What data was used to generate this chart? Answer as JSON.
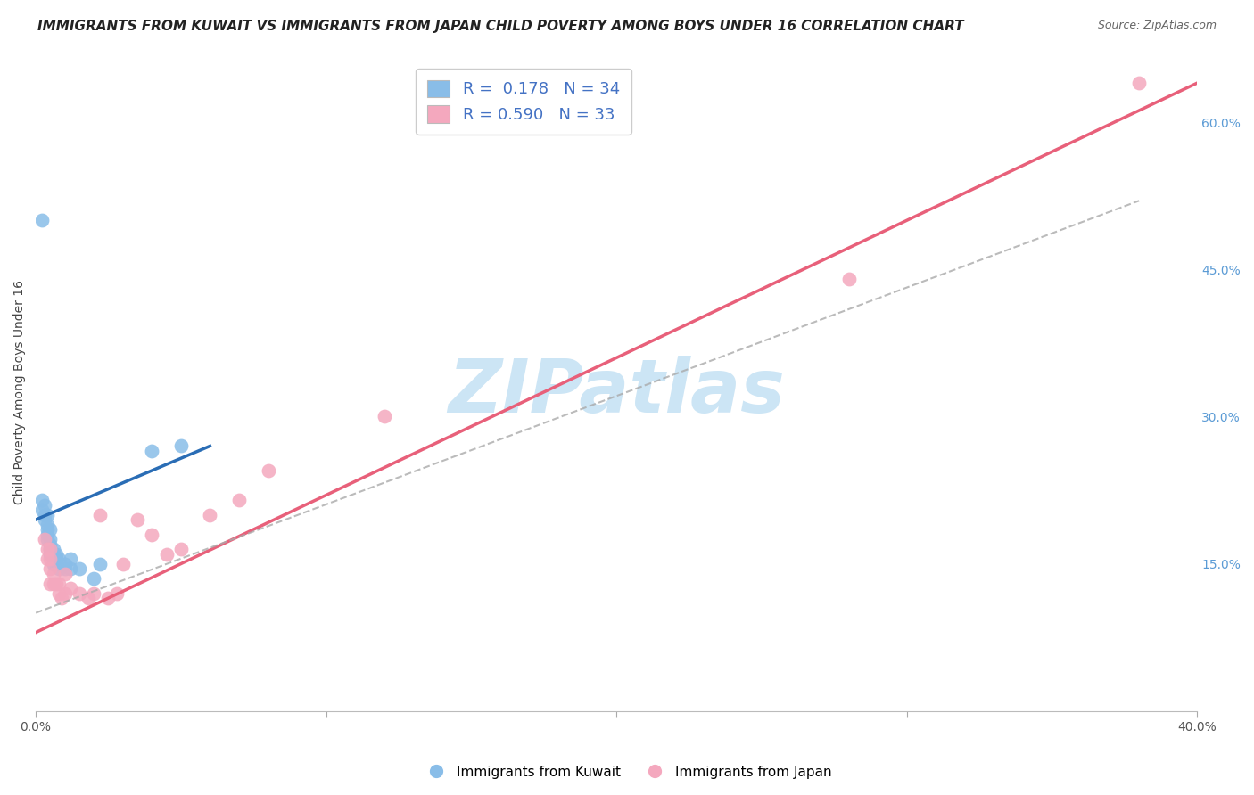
{
  "title": "IMMIGRANTS FROM KUWAIT VS IMMIGRANTS FROM JAPAN CHILD POVERTY AMONG BOYS UNDER 16 CORRELATION CHART",
  "source": "Source: ZipAtlas.com",
  "ylabel": "Child Poverty Among Boys Under 16",
  "xlim": [
    0.0,
    0.4
  ],
  "ylim": [
    0.0,
    0.65
  ],
  "xtick_positions": [
    0.0,
    0.1,
    0.2,
    0.3,
    0.4
  ],
  "xtick_labels": [
    "0.0%",
    "",
    "",
    "",
    "40.0%"
  ],
  "ytick_positions": [
    0.15,
    0.3,
    0.45,
    0.6
  ],
  "ytick_labels": [
    "15.0%",
    "30.0%",
    "45.0%",
    "60.0%"
  ],
  "r_kuwait": 0.178,
  "n_kuwait": 34,
  "r_japan": 0.59,
  "n_japan": 33,
  "color_kuwait": "#89bde8",
  "color_japan": "#f4a8be",
  "line_color_kuwait": "#2a6db5",
  "line_color_japan": "#e8607a",
  "line_color_dashed": "#aaaaaa",
  "watermark": "ZIPatlas",
  "watermark_color": "#cce5f5",
  "background_color": "#ffffff",
  "grid_color": "#cccccc",
  "kuwait_scatter_x": [
    0.002,
    0.002,
    0.003,
    0.003,
    0.003,
    0.004,
    0.004,
    0.004,
    0.004,
    0.004,
    0.005,
    0.005,
    0.005,
    0.005,
    0.005,
    0.006,
    0.006,
    0.006,
    0.006,
    0.007,
    0.007,
    0.007,
    0.008,
    0.008,
    0.01,
    0.01,
    0.012,
    0.012,
    0.015,
    0.02,
    0.022,
    0.04,
    0.002,
    0.05
  ],
  "kuwait_scatter_y": [
    0.215,
    0.205,
    0.2,
    0.21,
    0.195,
    0.185,
    0.19,
    0.2,
    0.175,
    0.18,
    0.185,
    0.175,
    0.17,
    0.165,
    0.16,
    0.165,
    0.155,
    0.15,
    0.16,
    0.155,
    0.15,
    0.16,
    0.155,
    0.145,
    0.145,
    0.15,
    0.155,
    0.145,
    0.145,
    0.135,
    0.15,
    0.265,
    0.5,
    0.27
  ],
  "japan_scatter_x": [
    0.003,
    0.004,
    0.004,
    0.005,
    0.005,
    0.005,
    0.005,
    0.006,
    0.006,
    0.007,
    0.008,
    0.008,
    0.009,
    0.01,
    0.01,
    0.012,
    0.015,
    0.018,
    0.02,
    0.022,
    0.025,
    0.028,
    0.03,
    0.035,
    0.04,
    0.045,
    0.05,
    0.06,
    0.07,
    0.08,
    0.12,
    0.28,
    0.38
  ],
  "japan_scatter_y": [
    0.175,
    0.165,
    0.155,
    0.165,
    0.155,
    0.145,
    0.13,
    0.14,
    0.13,
    0.13,
    0.13,
    0.12,
    0.115,
    0.14,
    0.12,
    0.125,
    0.12,
    0.115,
    0.12,
    0.2,
    0.115,
    0.12,
    0.15,
    0.195,
    0.18,
    0.16,
    0.165,
    0.2,
    0.215,
    0.245,
    0.3,
    0.44,
    0.64
  ],
  "title_fontsize": 11,
  "axis_label_fontsize": 10,
  "tick_fontsize": 10,
  "legend_fontsize": 13,
  "source_fontsize": 9,
  "blue_line_x": [
    0.0,
    0.06
  ],
  "blue_line_y": [
    0.195,
    0.27
  ],
  "pink_line_x": [
    0.0,
    0.4
  ],
  "pink_line_y": [
    0.08,
    0.64
  ],
  "dashed_line_x": [
    0.0,
    0.38
  ],
  "dashed_line_y": [
    0.1,
    0.52
  ]
}
